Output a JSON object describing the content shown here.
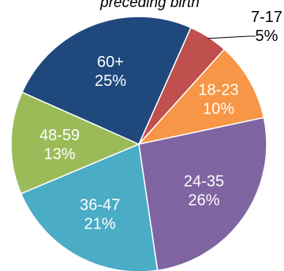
{
  "chart_data": {
    "type": "pie",
    "title": "preceding birth",
    "legend": "none",
    "slices": [
      {
        "label": "7-17",
        "value": 5,
        "pct_label": "5%",
        "color": "#C0504D",
        "label_color": "#000000",
        "outside": true
      },
      {
        "label": "18-23",
        "value": 10,
        "pct_label": "10%",
        "color": "#F79646",
        "label_color": "#ffffff",
        "outside": false
      },
      {
        "label": "24-35",
        "value": 26,
        "pct_label": "26%",
        "color": "#8064A2",
        "label_color": "#ffffff",
        "outside": false
      },
      {
        "label": "36-47",
        "value": 21,
        "pct_label": "21%",
        "color": "#4BACC6",
        "label_color": "#ffffff",
        "outside": false
      },
      {
        "label": "48-59",
        "value": 13,
        "pct_label": "13%",
        "color": "#9BBB59",
        "label_color": "#ffffff",
        "outside": false
      },
      {
        "label": "60+",
        "value": 25,
        "pct_label": "25%",
        "color": "#1F497D",
        "label_color": "#ffffff",
        "outside": false
      }
    ]
  }
}
